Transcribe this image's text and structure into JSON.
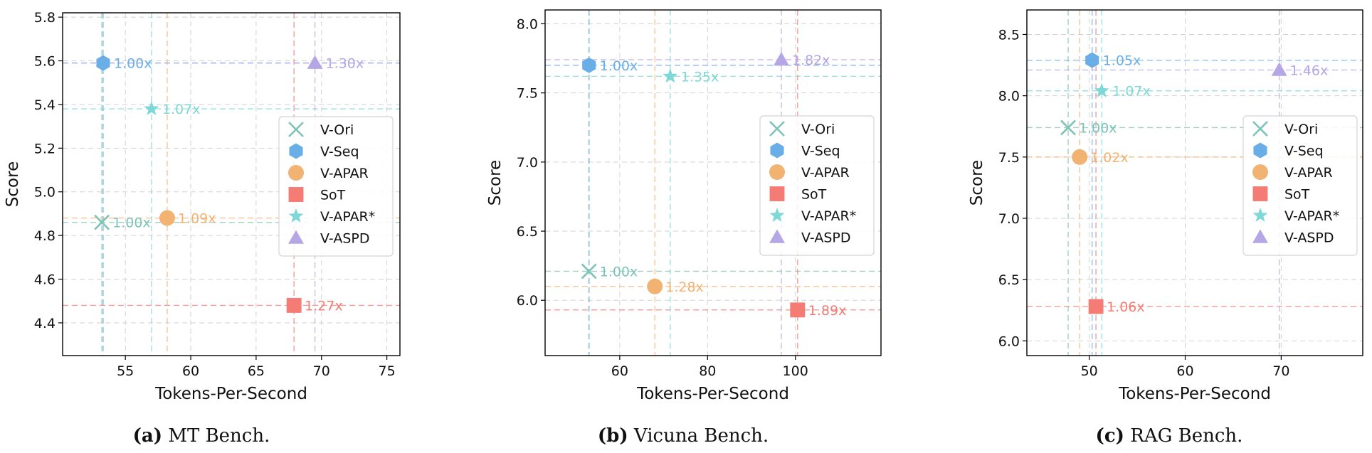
{
  "chart_data": [
    {
      "type": "scatter",
      "xlabel": "Tokens-Per-Second",
      "ylabel": "Score",
      "caption_label": "(a)",
      "caption_text": "MT Bench.",
      "xlim": [
        50.2,
        76.0
      ],
      "ylim": [
        4.25,
        5.82
      ],
      "xticks": [
        55,
        60,
        65,
        70,
        75
      ],
      "yticks": [
        4.4,
        4.6,
        4.8,
        5.0,
        5.2,
        5.4,
        5.6,
        5.8
      ],
      "grid": true,
      "legend_position": "center-right",
      "series": [
        {
          "name": "V-Ori",
          "marker": "x",
          "color": "#7ec4b6",
          "x": 53.2,
          "y": 4.86,
          "label": "1.00x"
        },
        {
          "name": "V-Seq",
          "marker": "hexagon",
          "color": "#6aaee8",
          "x": 53.3,
          "y": 5.59,
          "label": "1.00x"
        },
        {
          "name": "V-APAR",
          "marker": "circle",
          "color": "#f2b272",
          "x": 58.2,
          "y": 4.88,
          "label": "1.09x"
        },
        {
          "name": "SoT",
          "marker": "square",
          "color": "#f47c74",
          "x": 67.9,
          "y": 4.48,
          "label": "1.27x"
        },
        {
          "name": "V-APAR*",
          "marker": "star",
          "color": "#7fd8d8",
          "x": 57.0,
          "y": 5.38,
          "label": "1.07x"
        },
        {
          "name": "V-ASPD",
          "marker": "triangle",
          "color": "#b5a6e6",
          "x": 69.5,
          "y": 5.59,
          "label": "1.30x"
        }
      ]
    },
    {
      "type": "scatter",
      "xlabel": "Tokens-Per-Second",
      "ylabel": "Score",
      "caption_label": "(b)",
      "caption_text": "Vicuna Bench.",
      "xlim": [
        43.0,
        119.5
      ],
      "ylim": [
        5.6,
        8.1
      ],
      "xticks": [
        60,
        80,
        100
      ],
      "yticks": [
        6.0,
        6.5,
        7.0,
        7.5,
        8.0
      ],
      "grid": true,
      "legend_position": "center-right",
      "series": [
        {
          "name": "V-Ori",
          "marker": "x",
          "color": "#7ec4b6",
          "x": 53.0,
          "y": 6.21,
          "label": "1.00x"
        },
        {
          "name": "V-Seq",
          "marker": "hexagon",
          "color": "#6aaee8",
          "x": 53.0,
          "y": 7.7,
          "label": "1.00x"
        },
        {
          "name": "V-APAR",
          "marker": "circle",
          "color": "#f2b272",
          "x": 68.0,
          "y": 6.1,
          "label": "1.28x"
        },
        {
          "name": "SoT",
          "marker": "square",
          "color": "#f47c74",
          "x": 100.5,
          "y": 5.93,
          "label": "1.89x"
        },
        {
          "name": "V-APAR*",
          "marker": "star",
          "color": "#7fd8d8",
          "x": 71.5,
          "y": 7.62,
          "label": "1.35x"
        },
        {
          "name": "V-ASPD",
          "marker": "triangle",
          "color": "#b5a6e6",
          "x": 96.8,
          "y": 7.74,
          "label": "1.82x"
        }
      ]
    },
    {
      "type": "scatter",
      "xlabel": "Tokens-Per-Second",
      "ylabel": "Score",
      "caption_label": "(c)",
      "caption_text": "RAG Bench.",
      "xlim": [
        43.5,
        78.5
      ],
      "ylim": [
        5.88,
        8.7
      ],
      "xticks": [
        50,
        60,
        70
      ],
      "yticks": [
        6.0,
        6.5,
        7.0,
        7.5,
        8.0,
        8.5
      ],
      "grid": true,
      "legend_position": "center-right",
      "series": [
        {
          "name": "V-Ori",
          "marker": "x",
          "color": "#7ec4b6",
          "x": 47.8,
          "y": 7.74,
          "label": "1.00x"
        },
        {
          "name": "V-Seq",
          "marker": "hexagon",
          "color": "#6aaee8",
          "x": 50.3,
          "y": 8.29,
          "label": "1.05x"
        },
        {
          "name": "V-APAR",
          "marker": "circle",
          "color": "#f2b272",
          "x": 49.0,
          "y": 7.5,
          "label": "1.02x"
        },
        {
          "name": "SoT",
          "marker": "square",
          "color": "#f47c74",
          "x": 50.7,
          "y": 6.28,
          "label": "1.06x"
        },
        {
          "name": "V-APAR*",
          "marker": "star",
          "color": "#7fd8d8",
          "x": 51.3,
          "y": 8.04,
          "label": "1.07x"
        },
        {
          "name": "V-ASPD",
          "marker": "triangle",
          "color": "#b5a6e6",
          "x": 69.8,
          "y": 8.21,
          "label": "1.46x"
        }
      ]
    }
  ]
}
